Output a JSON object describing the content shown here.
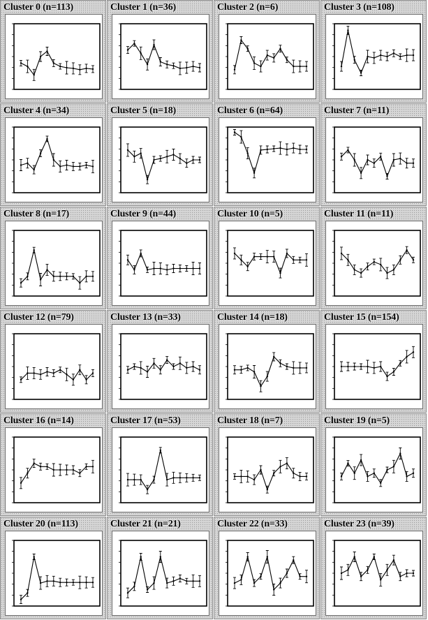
{
  "chart_data": [
    {
      "type": "line",
      "title": "Cluster 0 (n=113)",
      "values": [
        0.4,
        0.35,
        0.22,
        0.5,
        0.58,
        0.4,
        0.35,
        0.33,
        0.32,
        0.3,
        0.32,
        0.31
      ]
    },
    {
      "type": "line",
      "title": "Cluster 1 (n=36)",
      "values": [
        0.6,
        0.7,
        0.55,
        0.38,
        0.68,
        0.42,
        0.38,
        0.36,
        0.32,
        0.33,
        0.35,
        0.33
      ]
    },
    {
      "type": "line",
      "title": "Cluster 2 (n=6)",
      "values": [
        0.3,
        0.75,
        0.62,
        0.4,
        0.35,
        0.52,
        0.48,
        0.62,
        0.45,
        0.35,
        0.35,
        0.35
      ]
    },
    {
      "type": "line",
      "title": "Cluster 3 (n=108)",
      "values": [
        0.35,
        0.9,
        0.45,
        0.25,
        0.5,
        0.48,
        0.52,
        0.5,
        0.55,
        0.5,
        0.52,
        0.52
      ]
    },
    {
      "type": "line",
      "title": "Cluster 4 (n=34)",
      "values": [
        0.42,
        0.45,
        0.35,
        0.6,
        0.82,
        0.5,
        0.4,
        0.42,
        0.4,
        0.4,
        0.42,
        0.4
      ]
    },
    {
      "type": "line",
      "title": "Cluster 5 (n=18)",
      "values": [
        0.65,
        0.55,
        0.6,
        0.2,
        0.5,
        0.52,
        0.55,
        0.58,
        0.52,
        0.45,
        0.5,
        0.5
      ]
    },
    {
      "type": "line",
      "title": "Cluster 6 (n=64)",
      "values": [
        0.92,
        0.85,
        0.6,
        0.3,
        0.65,
        0.66,
        0.67,
        0.68,
        0.66,
        0.68,
        0.66,
        0.66
      ]
    },
    {
      "type": "line",
      "title": "Cluster 7 (n=11)",
      "values": [
        0.55,
        0.65,
        0.5,
        0.3,
        0.5,
        0.45,
        0.55,
        0.25,
        0.5,
        0.52,
        0.45,
        0.45
      ]
    },
    {
      "type": "line",
      "title": "Cluster 8 (n=17)",
      "values": [
        0.2,
        0.3,
        0.7,
        0.25,
        0.4,
        0.3,
        0.3,
        0.3,
        0.3,
        0.2,
        0.3,
        0.3
      ]
    },
    {
      "type": "line",
      "title": "Cluster 9 (n=44)",
      "values": [
        0.55,
        0.4,
        0.65,
        0.4,
        0.42,
        0.42,
        0.4,
        0.42,
        0.42,
        0.42,
        0.42,
        0.42
      ]
    },
    {
      "type": "line",
      "title": "Cluster 10 (n=5)",
      "values": [
        0.65,
        0.55,
        0.45,
        0.6,
        0.6,
        0.6,
        0.6,
        0.35,
        0.65,
        0.55,
        0.55,
        0.55
      ]
    },
    {
      "type": "line",
      "title": "Cluster 11 (n=11)",
      "values": [
        0.65,
        0.55,
        0.4,
        0.35,
        0.45,
        0.52,
        0.48,
        0.35,
        0.4,
        0.55,
        0.7,
        0.55
      ]
    },
    {
      "type": "line",
      "title": "Cluster 12 (n=79)",
      "values": [
        0.3,
        0.4,
        0.4,
        0.38,
        0.42,
        0.4,
        0.45,
        0.38,
        0.3,
        0.45,
        0.3,
        0.4
      ]
    },
    {
      "type": "line",
      "title": "Cluster 13 (n=33)",
      "values": [
        0.45,
        0.5,
        0.48,
        0.42,
        0.55,
        0.45,
        0.6,
        0.5,
        0.55,
        0.48,
        0.5,
        0.45
      ]
    },
    {
      "type": "line",
      "title": "Cluster 14 (n=18)",
      "values": [
        0.45,
        0.45,
        0.48,
        0.42,
        0.2,
        0.35,
        0.65,
        0.55,
        0.5,
        0.48,
        0.48,
        0.48
      ]
    },
    {
      "type": "line",
      "title": "Cluster 15 (n=154)",
      "values": [
        0.5,
        0.5,
        0.5,
        0.5,
        0.5,
        0.48,
        0.5,
        0.35,
        0.42,
        0.55,
        0.65,
        0.72
      ]
    },
    {
      "type": "line",
      "title": "Cluster 16 (n=14)",
      "values": [
        0.3,
        0.45,
        0.6,
        0.55,
        0.55,
        0.5,
        0.5,
        0.5,
        0.5,
        0.45,
        0.55,
        0.55
      ]
    },
    {
      "type": "line",
      "title": "Cluster 17 (n=53)",
      "values": [
        0.35,
        0.35,
        0.35,
        0.2,
        0.35,
        0.8,
        0.35,
        0.38,
        0.38,
        0.38,
        0.38,
        0.38
      ]
    },
    {
      "type": "line",
      "title": "Cluster 18 (n=7)",
      "values": [
        0.4,
        0.4,
        0.4,
        0.35,
        0.5,
        0.2,
        0.45,
        0.55,
        0.6,
        0.45,
        0.4,
        0.4
      ]
    },
    {
      "type": "line",
      "title": "Cluster 19 (n=5)",
      "values": [
        0.4,
        0.6,
        0.45,
        0.65,
        0.4,
        0.45,
        0.3,
        0.5,
        0.55,
        0.75,
        0.4,
        0.45
      ]
    },
    {
      "type": "line",
      "title": "Cluster 20 (n=113)",
      "values": [
        0.1,
        0.2,
        0.75,
        0.35,
        0.38,
        0.38,
        0.36,
        0.36,
        0.36,
        0.36,
        0.36,
        0.36
      ]
    },
    {
      "type": "line",
      "title": "Cluster 21 (n=21)",
      "values": [
        0.2,
        0.3,
        0.75,
        0.25,
        0.35,
        0.75,
        0.35,
        0.38,
        0.42,
        0.38,
        0.38,
        0.38
      ]
    },
    {
      "type": "line",
      "title": "Cluster 22 (n=33)",
      "values": [
        0.35,
        0.4,
        0.75,
        0.35,
        0.45,
        0.75,
        0.25,
        0.35,
        0.5,
        0.7,
        0.45,
        0.45
      ]
    },
    {
      "type": "line",
      "title": "Cluster 23 (n=39)",
      "values": [
        0.5,
        0.55,
        0.75,
        0.45,
        0.55,
        0.75,
        0.4,
        0.55,
        0.7,
        0.45,
        0.5,
        0.5
      ]
    }
  ]
}
